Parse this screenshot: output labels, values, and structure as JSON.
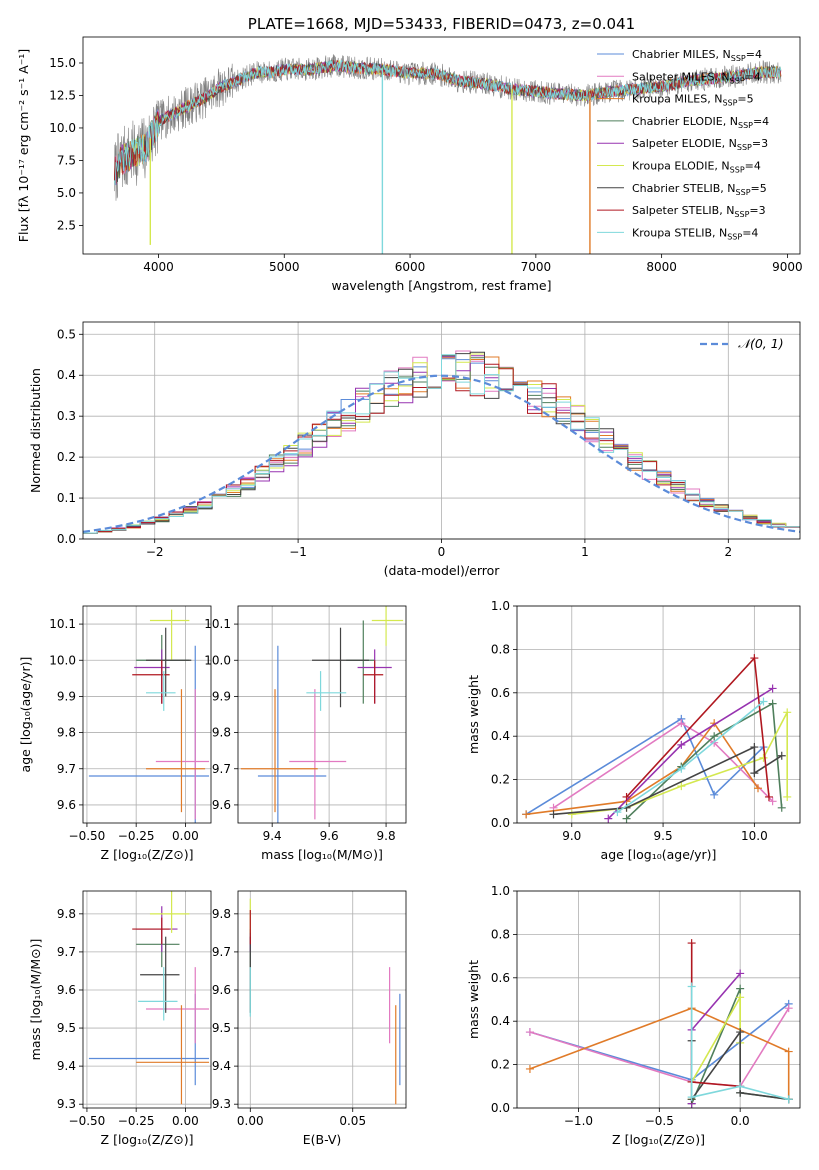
{
  "palette": [
    "#5b8bd9",
    "#e27ac1",
    "#e07b29",
    "#4f7f5c",
    "#9733b0",
    "#d4e84f",
    "#444444",
    "#b01820",
    "#7fd8dc"
  ],
  "chart_data": [
    {
      "id": "spectrum",
      "type": "line",
      "title": "PLATE=1668, MJD=53433, FIBERID=0473, z=0.041",
      "xlabel": "wavelength [Angstrom, rest frame]",
      "ylabel": "Flux [fλ 10⁻¹⁷ erg cm⁻² s⁻¹ A⁻¹]",
      "xlim": [
        3400,
        9100
      ],
      "ylim": [
        0.3,
        17
      ],
      "xticks": [
        "4000",
        "5000",
        "6000",
        "7000",
        "8000",
        "9000"
      ],
      "yticks": [
        "2.5",
        "5.0",
        "7.5",
        "10.0",
        "12.5",
        "15.0"
      ],
      "legend_position": "top-right",
      "observed": {
        "name": "",
        "color": "#808080"
      },
      "continuum": {
        "x": [
          3650,
          3700,
          3800,
          3900,
          4000,
          4100,
          4200,
          4300,
          4400,
          4500,
          4600,
          4700,
          4800,
          4900,
          5000,
          5200,
          5400,
          5600,
          5800,
          6000,
          6200,
          6400,
          6600,
          6800,
          7000,
          7200,
          7400,
          7600,
          7800,
          8000,
          8200,
          8400,
          8600,
          8800,
          8950
        ],
        "y": [
          6.5,
          7.5,
          8.0,
          8.5,
          10.5,
          11.0,
          11.5,
          12.0,
          12.5,
          13.2,
          13.5,
          14.0,
          14.3,
          14.3,
          14.5,
          14.5,
          14.8,
          14.6,
          14.5,
          14.2,
          14.2,
          13.6,
          13.4,
          13.0,
          12.8,
          12.6,
          12.5,
          12.8,
          13.0,
          13.2,
          13.6,
          13.8,
          14.0,
          14.3,
          14.3
        ]
      },
      "dips": [
        {
          "x": 3935,
          "y": 1.0,
          "series": 5
        },
        {
          "x": 5780,
          "y": 0.3,
          "series": 8
        },
        {
          "x": 6810,
          "y": 0.3,
          "series": 5
        },
        {
          "x": 7430,
          "y": 0.3,
          "series": 2
        }
      ],
      "series": [
        {
          "name": "Chabrier MILES, N",
          "sub": "SSP",
          "suffix": "=4"
        },
        {
          "name": "Salpeter MILES, N",
          "sub": "SSP",
          "suffix": "=4"
        },
        {
          "name": "Kroupa MILES, N",
          "sub": "SSP",
          "suffix": "=5"
        },
        {
          "name": "Chabrier ELODIE, N",
          "sub": "SSP",
          "suffix": "=4"
        },
        {
          "name": "Salpeter ELODIE, N",
          "sub": "SSP",
          "suffix": "=3"
        },
        {
          "name": "Kroupa ELODIE, N",
          "sub": "SSP",
          "suffix": "=4"
        },
        {
          "name": "Chabrier STELIB, N",
          "sub": "SSP",
          "suffix": "=5"
        },
        {
          "name": "Salpeter STELIB, N",
          "sub": "SSP",
          "suffix": "=3"
        },
        {
          "name": "Kroupa STELIB, N",
          "sub": "SSP",
          "suffix": "=4"
        }
      ]
    },
    {
      "id": "residuals",
      "type": "line",
      "xlabel": "(data-model)/error",
      "ylabel": "Normed distribution",
      "xlim": [
        -2.5,
        2.5
      ],
      "ylim": [
        0,
        0.53
      ],
      "xticks": [
        "−2",
        "−1",
        "0",
        "1",
        "2"
      ],
      "yticks": [
        "0.0",
        "0.1",
        "0.2",
        "0.3",
        "0.4",
        "0.5"
      ],
      "grid": true,
      "legend_position": "top-right",
      "reference": {
        "label": "𝒩(0, 1)",
        "mean": 0,
        "sigma": 1,
        "color": "#5b8bd9"
      },
      "bin_width": 0.1,
      "bin_start": -2.5
    },
    {
      "id": "age-vs-Z",
      "type": "scatter",
      "xlabel": "Z [log₁₀(Z/Z⊙)]",
      "ylabel": "age  [log₁₀(age/yr)]",
      "xlim": [
        -0.52,
        0.13
      ],
      "ylim": [
        9.55,
        10.15
      ],
      "xticks": [
        "−0.50",
        "−0.25",
        "0.00"
      ],
      "yticks": [
        "9.6",
        "9.7",
        "9.8",
        "9.9",
        "10.0",
        "10.1"
      ],
      "grid": true,
      "points": [
        {
          "x": 0.05,
          "y": 9.68,
          "xlo": -0.49,
          "xhi": 0.12,
          "ylo": 9.55,
          "yhi": 10.04,
          "series": 0
        },
        {
          "x": 0.05,
          "y": 9.72,
          "xlo": -0.15,
          "xhi": 0.12,
          "ylo": 9.56,
          "yhi": 9.92,
          "series": 1
        },
        {
          "x": -0.02,
          "y": 9.7,
          "xlo": -0.2,
          "xhi": 0.1,
          "ylo": 9.58,
          "yhi": 9.92,
          "series": 2
        },
        {
          "x": -0.12,
          "y": 10.0,
          "xlo": -0.25,
          "xhi": 0.02,
          "ylo": 9.88,
          "yhi": 10.07,
          "series": 3
        },
        {
          "x": -0.12,
          "y": 9.98,
          "xlo": -0.26,
          "xhi": -0.08,
          "ylo": 9.88,
          "yhi": 10.03,
          "series": 4
        },
        {
          "x": -0.07,
          "y": 10.11,
          "xlo": -0.18,
          "xhi": 0.02,
          "ylo": 10.0,
          "yhi": 10.14,
          "series": 5
        },
        {
          "x": -0.1,
          "y": 10.0,
          "xlo": -0.2,
          "xhi": 0.03,
          "ylo": 9.9,
          "yhi": 10.09,
          "series": 6
        },
        {
          "x": -0.12,
          "y": 9.96,
          "xlo": -0.27,
          "xhi": -0.08,
          "ylo": 9.88,
          "yhi": 10.0,
          "series": 7
        },
        {
          "x": -0.11,
          "y": 9.91,
          "xlo": -0.2,
          "xhi": -0.05,
          "ylo": 9.86,
          "yhi": 9.97,
          "series": 8
        }
      ]
    },
    {
      "id": "age-vs-mass",
      "type": "scatter",
      "xlabel": "mass [log₁₀(M/M⊙)]",
      "ylabel": "",
      "xlim": [
        9.28,
        9.87
      ],
      "ylim": [
        9.55,
        10.15
      ],
      "xticks": [
        "9.4",
        "9.6",
        "9.8"
      ],
      "yticks": [
        "9.6",
        "9.7",
        "9.8",
        "9.9",
        "10.0",
        "10.1"
      ],
      "grid": true,
      "points": [
        {
          "x": 9.42,
          "y": 9.68,
          "xlo": 9.35,
          "xhi": 9.59,
          "ylo": 9.55,
          "yhi": 10.04,
          "series": 0
        },
        {
          "x": 9.55,
          "y": 9.72,
          "xlo": 9.46,
          "xhi": 9.66,
          "ylo": 9.56,
          "yhi": 9.92,
          "series": 1
        },
        {
          "x": 9.41,
          "y": 9.7,
          "xlo": 9.29,
          "xhi": 9.56,
          "ylo": 9.58,
          "yhi": 9.92,
          "series": 2
        },
        {
          "x": 9.72,
          "y": 10.0,
          "xlo": 9.66,
          "xhi": 9.76,
          "ylo": 9.88,
          "yhi": 10.11,
          "series": 3
        },
        {
          "x": 9.76,
          "y": 9.98,
          "xlo": 9.7,
          "xhi": 9.82,
          "ylo": 9.88,
          "yhi": 10.03,
          "series": 4
        },
        {
          "x": 9.8,
          "y": 10.11,
          "xlo": 9.75,
          "xhi": 9.86,
          "ylo": 10.04,
          "yhi": 10.15,
          "series": 5
        },
        {
          "x": 9.64,
          "y": 10.0,
          "xlo": 9.54,
          "xhi": 9.74,
          "ylo": 9.87,
          "yhi": 10.09,
          "series": 6
        },
        {
          "x": 9.76,
          "y": 9.96,
          "xlo": 9.72,
          "xhi": 9.79,
          "ylo": 9.88,
          "yhi": 10.0,
          "series": 7
        },
        {
          "x": 9.57,
          "y": 9.91,
          "xlo": 9.52,
          "xhi": 9.66,
          "ylo": 9.86,
          "yhi": 9.97,
          "series": 8
        }
      ]
    },
    {
      "id": "weight-vs-age",
      "type": "line",
      "xlabel": "age  [log₁₀(age/yr)]",
      "ylabel": "mass weight",
      "xlim": [
        8.7,
        10.25
      ],
      "ylim": [
        0,
        1
      ],
      "xticks": [
        "9.0",
        "9.5",
        "10.0"
      ],
      "yticks": [
        "0.0",
        "0.2",
        "0.4",
        "0.6",
        "0.8",
        "1.0"
      ],
      "grid": true,
      "series": [
        {
          "series": 0,
          "x": [
            8.75,
            9.6,
            9.78,
            10.05
          ],
          "y": [
            0.04,
            0.48,
            0.13,
            0.35
          ]
        },
        {
          "series": 1,
          "x": [
            8.9,
            9.6,
            9.78,
            10.1
          ],
          "y": [
            0.07,
            0.46,
            0.37,
            0.1
          ]
        },
        {
          "series": 2,
          "x": [
            8.75,
            9.3,
            9.6,
            9.78,
            10.02
          ],
          "y": [
            0.04,
            0.1,
            0.26,
            0.46,
            0.16
          ]
        },
        {
          "series": 3,
          "x": [
            9.3,
            9.6,
            9.78,
            10.1,
            10.15
          ],
          "y": [
            0.02,
            0.26,
            0.4,
            0.55,
            0.07
          ]
        },
        {
          "series": 4,
          "x": [
            9.2,
            9.6,
            10.1
          ],
          "y": [
            0.02,
            0.36,
            0.62
          ]
        },
        {
          "series": 5,
          "x": [
            9.0,
            9.3,
            9.6,
            10.05,
            10.18,
            10.18
          ],
          "y": [
            0.04,
            0.07,
            0.17,
            0.3,
            0.51,
            0.12
          ]
        },
        {
          "series": 6,
          "x": [
            8.9,
            9.3,
            10.0,
            10.0,
            10.15
          ],
          "y": [
            0.04,
            0.07,
            0.35,
            0.23,
            0.31
          ]
        },
        {
          "series": 7,
          "x": [
            9.3,
            10.0,
            10.08
          ],
          "y": [
            0.12,
            0.76,
            0.12
          ]
        },
        {
          "series": 8,
          "x": [
            9.25,
            9.6,
            10.05
          ],
          "y": [
            0.05,
            0.25,
            0.56
          ]
        }
      ]
    },
    {
      "id": "mass-vs-Z",
      "type": "scatter",
      "xlabel": "Z [log₁₀(Z/Z⊙)]",
      "ylabel": "mass [log₁₀(M/M⊙)]",
      "xlim": [
        -0.52,
        0.13
      ],
      "ylim": [
        9.29,
        9.86
      ],
      "xticks": [
        "−0.50",
        "−0.25",
        "0.00"
      ],
      "yticks": [
        "9.3",
        "9.4",
        "9.5",
        "9.6",
        "9.7",
        "9.8"
      ],
      "grid": true,
      "points": [
        {
          "x": 0.05,
          "y": 9.42,
          "xlo": -0.49,
          "xhi": 0.12,
          "ylo": 9.35,
          "yhi": 9.59,
          "series": 0
        },
        {
          "x": 0.05,
          "y": 9.55,
          "xlo": -0.2,
          "xhi": 0.12,
          "ylo": 9.46,
          "yhi": 9.66,
          "series": 1
        },
        {
          "x": -0.02,
          "y": 9.41,
          "xlo": -0.25,
          "xhi": 0.12,
          "ylo": 9.3,
          "yhi": 9.56,
          "series": 2
        },
        {
          "x": -0.12,
          "y": 9.72,
          "xlo": -0.25,
          "xhi": -0.03,
          "ylo": 9.66,
          "yhi": 9.76,
          "series": 3
        },
        {
          "x": -0.12,
          "y": 9.76,
          "xlo": -0.25,
          "xhi": -0.04,
          "ylo": 9.7,
          "yhi": 9.82,
          "series": 4
        },
        {
          "x": -0.07,
          "y": 9.8,
          "xlo": -0.18,
          "xhi": 0.02,
          "ylo": 9.75,
          "yhi": 9.86,
          "series": 5
        },
        {
          "x": -0.1,
          "y": 9.64,
          "xlo": -0.23,
          "xhi": -0.03,
          "ylo": 9.54,
          "yhi": 9.74,
          "series": 6
        },
        {
          "x": -0.12,
          "y": 9.76,
          "xlo": -0.27,
          "xhi": -0.08,
          "ylo": 9.72,
          "yhi": 9.79,
          "series": 7
        },
        {
          "x": -0.11,
          "y": 9.57,
          "xlo": -0.24,
          "xhi": -0.04,
          "ylo": 9.52,
          "yhi": 9.66,
          "series": 8
        }
      ]
    },
    {
      "id": "mass-vs-ebv",
      "type": "scatter",
      "xlabel": "E(B-V)",
      "ylabel": "",
      "xlim": [
        -0.006,
        0.076
      ],
      "ylim": [
        9.29,
        9.86
      ],
      "xticks": [
        "0.00",
        "0.05"
      ],
      "yticks": [
        "9.3",
        "9.4",
        "9.5",
        "9.6",
        "9.7",
        "9.8"
      ],
      "grid": true,
      "bars": [
        {
          "x": 0.073,
          "ylo": 9.35,
          "yhi": 9.59,
          "series": 0
        },
        {
          "x": 0.068,
          "ylo": 9.46,
          "yhi": 9.66,
          "series": 1
        },
        {
          "x": 0.071,
          "ylo": 9.3,
          "yhi": 9.56,
          "series": 2
        },
        {
          "x": 0.0,
          "ylo": 9.66,
          "yhi": 9.76,
          "series": 3
        },
        {
          "x": 0.0,
          "ylo": 9.7,
          "yhi": 9.74,
          "series": 4
        },
        {
          "x": 0.0,
          "ylo": 9.75,
          "yhi": 9.84,
          "series": 5
        },
        {
          "x": 0.0,
          "ylo": 9.54,
          "yhi": 9.74,
          "series": 6
        },
        {
          "x": 0.0,
          "ylo": 9.72,
          "yhi": 9.81,
          "series": 7
        },
        {
          "x": 0.0,
          "ylo": 9.53,
          "yhi": 9.66,
          "series": 8
        }
      ]
    },
    {
      "id": "weight-vs-Z",
      "type": "line",
      "xlabel": "Z [log₁₀(Z/Z⊙)]",
      "ylabel": "mass weight",
      "xlim": [
        -1.38,
        0.37
      ],
      "ylim": [
        0,
        1
      ],
      "xticks": [
        "−1.0",
        "−0.5",
        "0.0"
      ],
      "yticks": [
        "0.0",
        "0.2",
        "0.4",
        "0.6",
        "0.8",
        "1.0"
      ],
      "grid": true,
      "series": [
        {
          "series": 0,
          "x": [
            -1.3,
            -0.3,
            0.3
          ],
          "y": [
            0.35,
            0.13,
            0.48
          ]
        },
        {
          "series": 1,
          "x": [
            -1.3,
            -0.3,
            0.0,
            0.3
          ],
          "y": [
            0.35,
            0.12,
            0.1,
            0.46
          ]
        },
        {
          "series": 2,
          "x": [
            -1.3,
            -0.3,
            0.3,
            0.3
          ],
          "y": [
            0.18,
            0.46,
            0.26,
            0.04
          ]
        },
        {
          "series": 3,
          "x": [
            -0.3,
            0.0,
            0.0,
            0.3
          ],
          "y": [
            0.02,
            0.55,
            0.07,
            0.04
          ]
        },
        {
          "series": 4,
          "x": [
            -0.3,
            -0.3,
            0.0
          ],
          "y": [
            0.02,
            0.36,
            0.62
          ]
        },
        {
          "series": 5,
          "x": [
            -0.3,
            -0.3,
            0.0,
            0.0
          ],
          "y": [
            0.04,
            0.12,
            0.51,
            0.3
          ]
        },
        {
          "series": 6,
          "x": [
            -0.3,
            -0.3,
            0.0,
            0.0,
            0.3
          ],
          "y": [
            0.31,
            0.04,
            0.35,
            0.07,
            0.04
          ]
        },
        {
          "series": 7,
          "x": [
            -0.3,
            -0.3,
            0.0
          ],
          "y": [
            0.76,
            0.12,
            0.1
          ]
        },
        {
          "series": 8,
          "x": [
            -0.3,
            -0.3,
            0.0,
            0.3
          ],
          "y": [
            0.56,
            0.05,
            0.1,
            0.04
          ]
        }
      ]
    }
  ]
}
